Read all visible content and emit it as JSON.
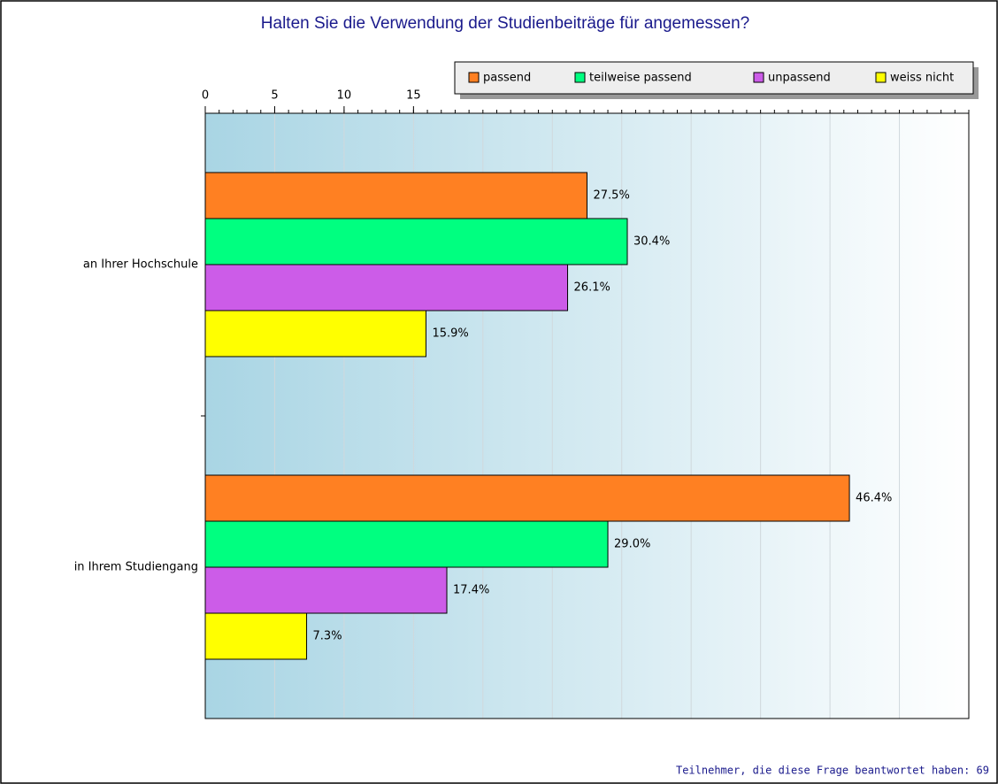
{
  "chart_data": {
    "type": "bar",
    "orientation": "horizontal",
    "title": "Halten Sie die Verwendung der Studienbeiträge für angemessen?",
    "categories": [
      "an Ihrer Hochschule",
      "in Ihrem Studiengang"
    ],
    "series": [
      {
        "name": "passend",
        "color": "#ff8022",
        "values": [
          27.5,
          46.4
        ],
        "value_labels": [
          "27.5%",
          "46.4%"
        ]
      },
      {
        "name": "teilweise passend",
        "color": "#00ff80",
        "values": [
          30.4,
          29.0
        ],
        "value_labels": [
          "30.4%",
          "29.0%"
        ]
      },
      {
        "name": "unpassend",
        "color": "#cc5ce8",
        "values": [
          26.1,
          17.4
        ],
        "value_labels": [
          "26.1%",
          "17.4%"
        ]
      },
      {
        "name": "weiss nicht",
        "color": "#ffff00",
        "values": [
          15.9,
          7.3
        ],
        "value_labels": [
          "15.9%",
          "7.3%"
        ]
      }
    ],
    "xlim": [
      0,
      55
    ],
    "xticks": [
      0,
      5,
      10,
      15
    ],
    "grid": true,
    "legend": "top-right",
    "note": "Teilnehmer, die diese Frage beantwortet haben: 69"
  }
}
